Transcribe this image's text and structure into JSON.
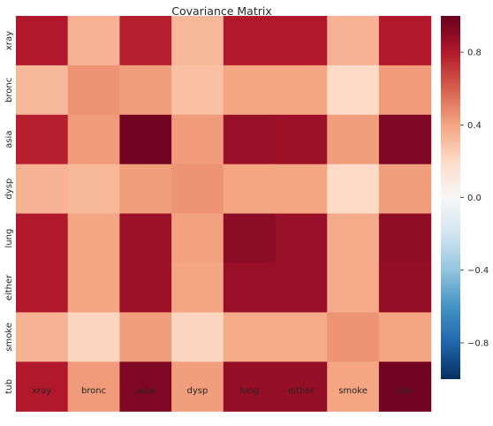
{
  "chart_data": {
    "type": "heatmap",
    "title": "Covariance Matrix",
    "xlabel": "",
    "ylabel": "",
    "x_categories": [
      "xray",
      "bronc",
      "asia",
      "dysp",
      "lung",
      "either",
      "smoke",
      "tub"
    ],
    "y_categories": [
      "xray",
      "bronc",
      "asia",
      "dysp",
      "lung",
      "either",
      "smoke",
      "tub"
    ],
    "values": [
      [
        0.8,
        0.35,
        0.78,
        0.33,
        0.8,
        0.8,
        0.35,
        0.8
      ],
      [
        0.33,
        0.45,
        0.42,
        0.3,
        0.4,
        0.4,
        0.2,
        0.43
      ],
      [
        0.78,
        0.43,
        0.97,
        0.43,
        0.87,
        0.86,
        0.42,
        0.94
      ],
      [
        0.35,
        0.33,
        0.42,
        0.45,
        0.4,
        0.4,
        0.2,
        0.42
      ],
      [
        0.8,
        0.4,
        0.86,
        0.41,
        0.9,
        0.87,
        0.38,
        0.89
      ],
      [
        0.8,
        0.4,
        0.86,
        0.4,
        0.87,
        0.87,
        0.38,
        0.88
      ],
      [
        0.35,
        0.22,
        0.42,
        0.22,
        0.38,
        0.38,
        0.45,
        0.4
      ],
      [
        0.8,
        0.43,
        0.94,
        0.42,
        0.88,
        0.88,
        0.4,
        0.97
      ]
    ],
    "colorscale": "RdBu_r",
    "vmin": -1.0,
    "vmax": 1.0,
    "colorbar_ticks": [
      0.8,
      0.4,
      0.0,
      -0.4,
      -0.8
    ],
    "colorbar_tick_labels": [
      "0.8",
      "0.4",
      "0.0",
      "−0.4",
      "−0.8"
    ],
    "grid": false
  }
}
